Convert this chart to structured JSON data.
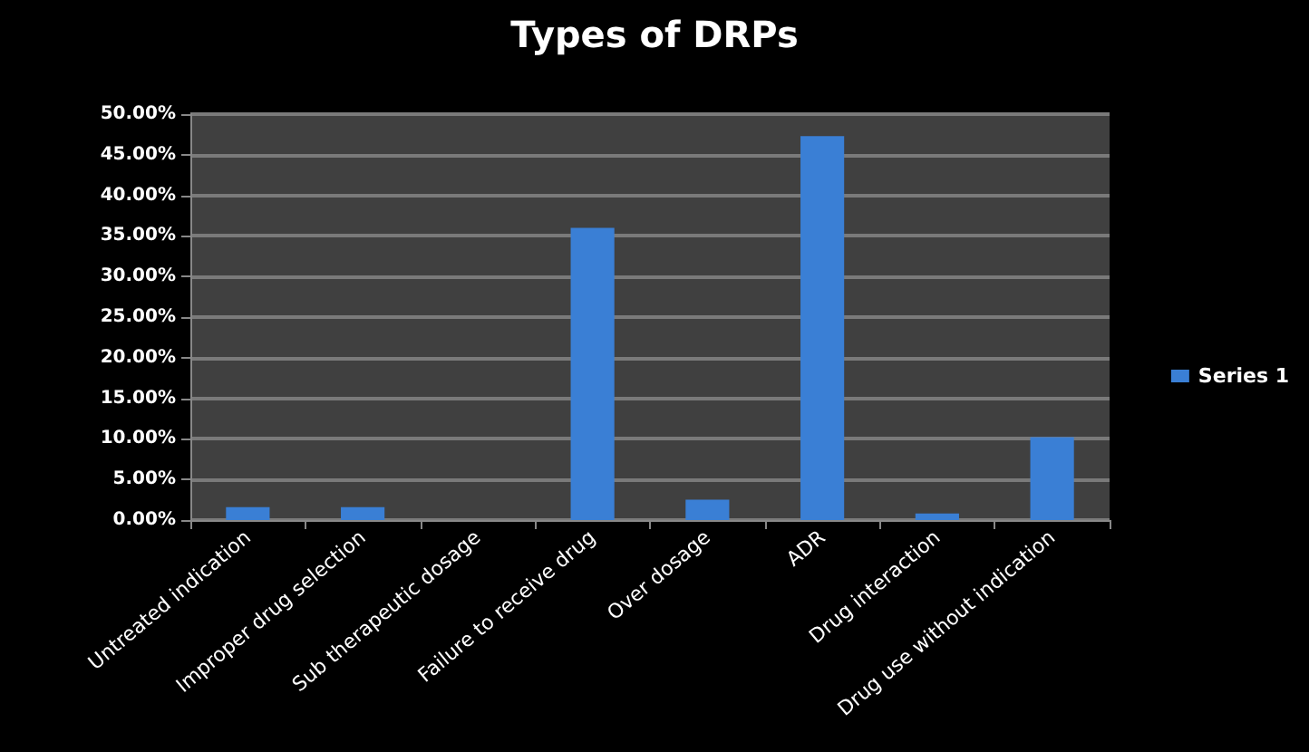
{
  "chart_data": {
    "type": "bar",
    "title": "Types of DRPs",
    "categories": [
      "Untreated indication",
      "Improper drug selection",
      "Sub therapeutic dosage",
      "Failure to receive drug",
      "Over dosage",
      "ADR",
      "Drug interaction",
      "Drug use without indication"
    ],
    "series": [
      {
        "name": "Series 1",
        "color": "#3a7fd5",
        "values": [
          1.6,
          1.6,
          0,
          36,
          2.5,
          47.3,
          0.8,
          10.2
        ]
      }
    ],
    "ylim": [
      0,
      50
    ],
    "yticks": [
      {
        "value": 0,
        "label": "0.00%"
      },
      {
        "value": 5,
        "label": "5.00%"
      },
      {
        "value": 10,
        "label": "10.00%"
      },
      {
        "value": 15,
        "label": "15.00%"
      },
      {
        "value": 20,
        "label": "20.00%"
      },
      {
        "value": 25,
        "label": "25.00%"
      },
      {
        "value": 30,
        "label": "30.00%"
      },
      {
        "value": 35,
        "label": "35.00%"
      },
      {
        "value": 40,
        "label": "40.00%"
      },
      {
        "value": 45,
        "label": "45.00%"
      },
      {
        "value": 50,
        "label": "50.00%"
      }
    ],
    "grid": "y",
    "legend": "right"
  }
}
